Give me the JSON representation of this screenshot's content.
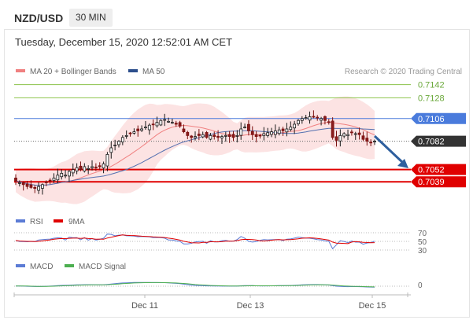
{
  "header": {
    "pair": "NZD/USD",
    "timeframe": "30 MIN",
    "datetime": "Tuesday, December 15, 2020 12:52:01 AM CET"
  },
  "legend": {
    "ma20": "MA 20 + Bollinger Bands",
    "ma50": "MA 50",
    "credit": "Research © 2020 Trading Central",
    "rsi": "RSI",
    "rsi_ma": "9MA",
    "macd": "MACD",
    "macd_signal": "MACD Signal"
  },
  "colors": {
    "ma20": "#f08080",
    "ma50": "#5470b0",
    "bollinger": "#fbdada",
    "resistance": "#8bc34a",
    "pivot": "#4a7bdc",
    "support": "#e00000",
    "last_price": "#333333",
    "arrow": "#2e5f9e"
  },
  "chart_data": {
    "type": "candlestick",
    "ylim": [
      0.702,
      0.715
    ],
    "x_ticks": [
      "Dec 11",
      "Dec 13",
      "Dec 15"
    ],
    "levels": [
      {
        "label": "0.7142",
        "value": 0.7142,
        "kind": "resistance"
      },
      {
        "label": "0.7128",
        "value": 0.7128,
        "kind": "resistance"
      },
      {
        "label": "0.7106",
        "value": 0.7106,
        "kind": "pivot"
      },
      {
        "label": "0.7082",
        "value": 0.7082,
        "kind": "last"
      },
      {
        "label": "0.7052",
        "value": 0.7052,
        "kind": "support"
      },
      {
        "label": "0.7039",
        "value": 0.7039,
        "kind": "support"
      }
    ],
    "close": [
      0.704,
      0.7038,
      0.7036,
      0.7034,
      0.7033,
      0.7032,
      0.7034,
      0.7036,
      0.7038,
      0.704,
      0.7043,
      0.7046,
      0.7048,
      0.7046,
      0.705,
      0.7052,
      0.7054,
      0.7052,
      0.7055,
      0.7053,
      0.7055,
      0.7054,
      0.7055,
      0.7058,
      0.7068,
      0.7075,
      0.7078,
      0.7082,
      0.7086,
      0.7088,
      0.709,
      0.7092,
      0.7093,
      0.7095,
      0.7097,
      0.7099,
      0.71,
      0.7102,
      0.7104,
      0.7105,
      0.7103,
      0.7102,
      0.71,
      0.7098,
      0.7092,
      0.7088,
      0.7086,
      0.7087,
      0.7088,
      0.7089,
      0.7086,
      0.7088,
      0.7087,
      0.7086,
      0.7087,
      0.7088,
      0.7087,
      0.7086,
      0.7088,
      0.7095,
      0.7097,
      0.7093,
      0.7089,
      0.7087,
      0.7088,
      0.709,
      0.7091,
      0.7092,
      0.7093,
      0.7094,
      0.7093,
      0.7095,
      0.7097,
      0.71,
      0.7104,
      0.7106,
      0.7107,
      0.7108,
      0.7108,
      0.7107,
      0.7106,
      0.7104,
      0.7102,
      0.7086,
      0.7083,
      0.7088,
      0.709,
      0.7089,
      0.7091,
      0.709,
      0.7089,
      0.7084,
      0.7082,
      0.7081,
      0.7082
    ],
    "rsi": {
      "levels": [
        70,
        50,
        30
      ],
      "level_labels": [
        "70",
        "50",
        "30"
      ]
    },
    "macd": {
      "zero_label": "0"
    }
  }
}
